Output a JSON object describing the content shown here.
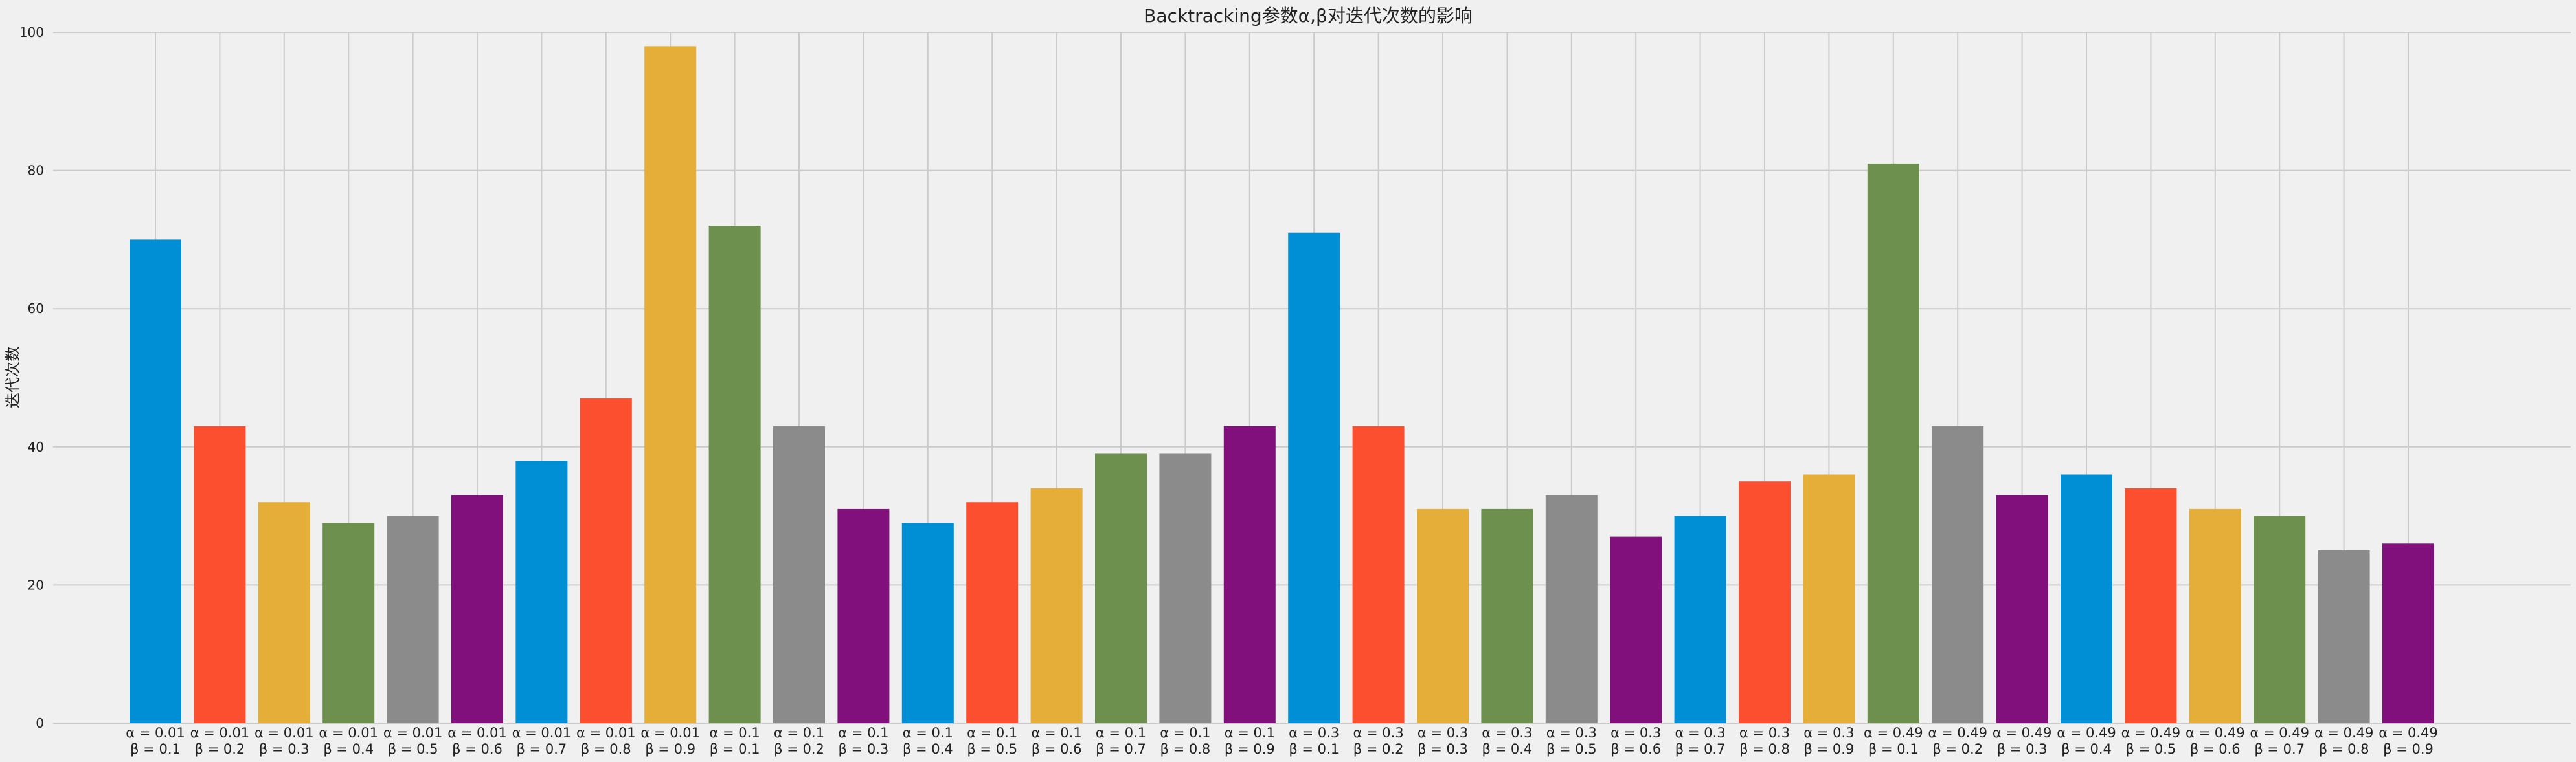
{
  "chart_data": {
    "type": "bar",
    "title": "Backtracking参数α,β对迭代次数的影响",
    "xlabel": "",
    "ylabel": "迭代次数",
    "ylim": [
      0,
      100
    ],
    "yticks": [
      0,
      20,
      40,
      60,
      80,
      100
    ],
    "grid": true,
    "legend": "none",
    "colors": [
      "#008fd5",
      "#fc4f30",
      "#e5ae38",
      "#6d904f",
      "#8b8b8b",
      "#810f7c"
    ],
    "categories": [
      {
        "alpha": "α = 0.01",
        "beta": "β = 0.1"
      },
      {
        "alpha": "α = 0.01",
        "beta": "β = 0.2"
      },
      {
        "alpha": "α = 0.01",
        "beta": "β = 0.3"
      },
      {
        "alpha": "α = 0.01",
        "beta": "β = 0.4"
      },
      {
        "alpha": "α = 0.01",
        "beta": "β = 0.5"
      },
      {
        "alpha": "α = 0.01",
        "beta": "β = 0.6"
      },
      {
        "alpha": "α = 0.01",
        "beta": "β = 0.7"
      },
      {
        "alpha": "α = 0.01",
        "beta": "β = 0.8"
      },
      {
        "alpha": "α = 0.01",
        "beta": "β = 0.9"
      },
      {
        "alpha": "α = 0.1",
        "beta": "β = 0.1"
      },
      {
        "alpha": "α = 0.1",
        "beta": "β = 0.2"
      },
      {
        "alpha": "α = 0.1",
        "beta": "β = 0.3"
      },
      {
        "alpha": "α = 0.1",
        "beta": "β = 0.4"
      },
      {
        "alpha": "α = 0.1",
        "beta": "β = 0.5"
      },
      {
        "alpha": "α = 0.1",
        "beta": "β = 0.6"
      },
      {
        "alpha": "α = 0.1",
        "beta": "β = 0.7"
      },
      {
        "alpha": "α = 0.1",
        "beta": "β = 0.8"
      },
      {
        "alpha": "α = 0.1",
        "beta": "β = 0.9"
      },
      {
        "alpha": "α = 0.3",
        "beta": "β = 0.1"
      },
      {
        "alpha": "α = 0.3",
        "beta": "β = 0.2"
      },
      {
        "alpha": "α = 0.3",
        "beta": "β = 0.3"
      },
      {
        "alpha": "α = 0.3",
        "beta": "β = 0.4"
      },
      {
        "alpha": "α = 0.3",
        "beta": "β = 0.5"
      },
      {
        "alpha": "α = 0.3",
        "beta": "β = 0.6"
      },
      {
        "alpha": "α = 0.3",
        "beta": "β = 0.7"
      },
      {
        "alpha": "α = 0.3",
        "beta": "β = 0.8"
      },
      {
        "alpha": "α = 0.3",
        "beta": "β = 0.9"
      },
      {
        "alpha": "α = 0.49",
        "beta": "β = 0.1"
      },
      {
        "alpha": "α = 0.49",
        "beta": "β = 0.2"
      },
      {
        "alpha": "α = 0.49",
        "beta": "β = 0.3"
      },
      {
        "alpha": "α = 0.49",
        "beta": "β = 0.4"
      },
      {
        "alpha": "α = 0.49",
        "beta": "β = 0.5"
      },
      {
        "alpha": "α = 0.49",
        "beta": "β = 0.6"
      },
      {
        "alpha": "α = 0.49",
        "beta": "β = 0.7"
      },
      {
        "alpha": "α = 0.49",
        "beta": "β = 0.8"
      },
      {
        "alpha": "α = 0.49",
        "beta": "β = 0.9"
      }
    ],
    "values": [
      70,
      43,
      32,
      29,
      30,
      33,
      38,
      47,
      98,
      72,
      43,
      31,
      29,
      32,
      34,
      39,
      39,
      43,
      71,
      43,
      31,
      31,
      33,
      27,
      30,
      35,
      36,
      81,
      43,
      33,
      36,
      34,
      31,
      30,
      25,
      26
    ]
  }
}
